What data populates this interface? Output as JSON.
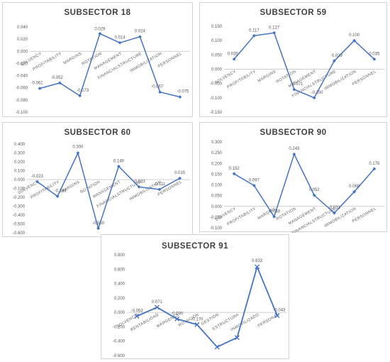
{
  "chart_data": [
    {
      "type": "line",
      "title": "SUBSECTOR 18",
      "categories": [
        "SOLVENCY",
        "PROFITABILITY",
        "MARGINS",
        "ROTATION",
        "MANAGEMENT",
        "FINANCIALSTRUCTURE",
        "IMMOBILIZATION",
        "PERSONNEL"
      ],
      "series": [
        {
          "values": [
            -0.061,
            -0.052,
            -0.073,
            0.029,
            0.014,
            0.024,
            -0.067,
            -0.075
          ]
        }
      ],
      "labels": [
        "-0.061",
        "-0.052",
        "-0.073",
        "0.029",
        "0.014",
        "0.024",
        "-0.067",
        "-0.075"
      ],
      "yticks": [
        "0.040",
        "0.020",
        "0.000",
        "-0.020",
        "-0.040",
        "-0.060",
        "-0.080",
        "-0.100"
      ],
      "ylim": [
        -0.1,
        0.04
      ],
      "marker": "diamond",
      "color": "#4472c4"
    },
    {
      "type": "line",
      "title": "SUBSECTOR 59",
      "categories": [
        "SOLVENCY",
        "PROFITABILITY",
        "MARGINS",
        "ROTATION",
        "MANAGEMENT",
        "FINANCIALSTRUCTURE",
        "IMMOBILIZATION",
        "PERSONNEL"
      ],
      "series": [
        {
          "values": [
            0.035,
            0.117,
            0.127,
            -0.071,
            -0.1,
            0.029,
            0.1,
            0.035
          ]
        }
      ],
      "labels": [
        "0.035",
        "0.117",
        "0.127",
        "-0.071",
        "-0.100",
        "0.029",
        "0.100",
        "0.035"
      ],
      "yticks": [
        "0.150",
        "0.100",
        "0.050",
        "0.000",
        "-0.050",
        "-0.100",
        "-0.150"
      ],
      "ylim": [
        -0.15,
        0.15
      ],
      "marker": "diamond",
      "color": "#4472c4"
    },
    {
      "type": "line",
      "title": "SUBSECTOR 60",
      "categories": [
        "SOLVENCY",
        "PROFITABILITY",
        "MARGINS",
        "ROTATION",
        "MANAGEMENT",
        "FINANCIALSTRUCTURE",
        "IMMOBILIZATION",
        "PERSONNEL"
      ],
      "series": [
        {
          "values": [
            -0.023,
            -0.189,
            0.3,
            -0.55,
            0.149,
            -0.083,
            -0.111,
            0.015
          ]
        }
      ],
      "labels": [
        "-0.023",
        "-0.189",
        "0.300",
        "-0.550",
        "0.149",
        "-0.083",
        "-0.111",
        "0.015"
      ],
      "yticks": [
        "0.400",
        "0.300",
        "0.200",
        "0.100",
        "0.000",
        "-0.100",
        "-0.200",
        "-0.300",
        "-0.400",
        "-0.500",
        "-0.600"
      ],
      "ylim": [
        -0.6,
        0.4
      ],
      "marker": "diamond",
      "color": "#4472c4"
    },
    {
      "type": "line",
      "title": "SUBSECTOR 90",
      "categories": [
        "SOLVENCY",
        "PROFITABILITY",
        "MARGINS",
        "ROTATION",
        "MANAGEMENT",
        "FINANCIALSTRUCTURE",
        "IMMOBILIZATION",
        "PERSONNEL"
      ],
      "series": [
        {
          "values": [
            0.152,
            0.097,
            -0.048,
            0.243,
            0.052,
            -0.031,
            0.068,
            0.175
          ]
        }
      ],
      "labels": [
        "0.152",
        "0.097",
        "-0.048",
        "0.243",
        "0.052",
        "-0.031",
        "0.068",
        "0.175"
      ],
      "yticks": [
        "0.300",
        "0.250",
        "0.200",
        "0.150",
        "0.100",
        "0.050",
        "0.000",
        "-0.050",
        "-0.100"
      ],
      "ylim": [
        -0.1,
        0.3
      ],
      "marker": "diamond",
      "color": "#4472c4"
    },
    {
      "type": "line",
      "title": "SUBSECTOR 91",
      "categories": [
        "SOLVENCIA",
        "RENTABILIDAD",
        "MÁRGENES",
        "ROTACIÓN",
        "GESTIÓN",
        "ESTRUCTURA",
        "INMOVILIZADO",
        "PERSONAL"
      ],
      "series": [
        {
          "values": [
            -0.053,
            0.071,
            -0.09,
            -0.17,
            -0.48,
            -0.35,
            0.633,
            -0.043
          ]
        }
      ],
      "labels": [
        "-0.053",
        "0.071",
        "-0.090",
        "-0.170",
        "",
        "",
        "0.633",
        "-0.043"
      ],
      "yticks": [
        "0.800",
        "0.600",
        "0.400",
        "0.200",
        "0.000",
        "-0.200",
        "-0.400",
        "-0.600"
      ],
      "ylim": [
        -0.6,
        0.8
      ],
      "marker": "x",
      "color": "#4472c4"
    }
  ]
}
